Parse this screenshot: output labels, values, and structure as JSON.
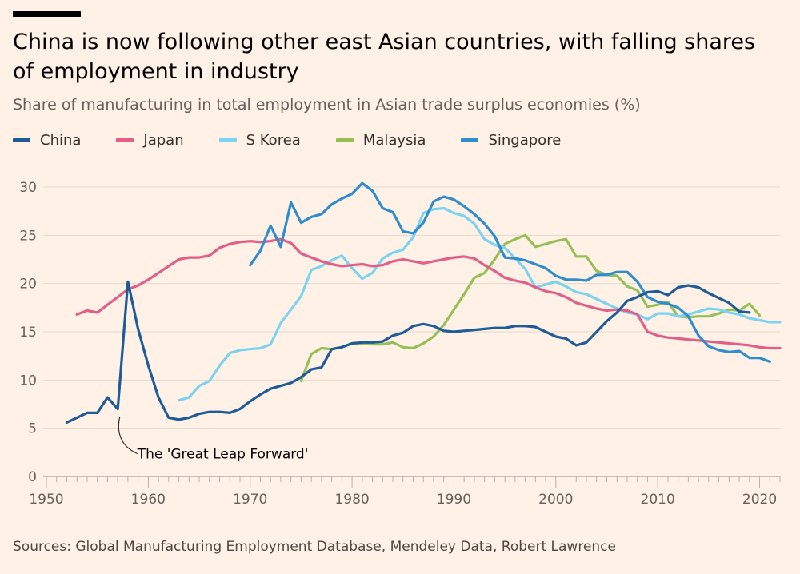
{
  "header": {
    "title": "China is now following other east Asian countries, with falling shares of employment in industry",
    "subtitle": "Share of manufacturing in total employment in Asian trade surplus economies (%)"
  },
  "legend": [
    {
      "name": "China",
      "color": "#1E5B99"
    },
    {
      "name": "Japan",
      "color": "#E35E87"
    },
    {
      "name": "S Korea",
      "color": "#7AD3F1"
    },
    {
      "name": "Malaysia",
      "color": "#96C056"
    },
    {
      "name": "Singapore",
      "color": "#2E8CCF"
    }
  ],
  "source": "Sources: Global Manufacturing Employment Database, Mendeley Data, Robert Lawrence",
  "chart_data": {
    "type": "line",
    "title": "Share of manufacturing in total employment in Asian trade surplus economies (%)",
    "xlabel": "",
    "ylabel": "",
    "xlim": [
      1950,
      2022
    ],
    "ylim": [
      0,
      30
    ],
    "x_ticks": [
      1950,
      1960,
      1970,
      1980,
      1990,
      2000,
      2010,
      2020
    ],
    "y_ticks": [
      0,
      5,
      10,
      15,
      20,
      25,
      30
    ],
    "grid": true,
    "annotation": {
      "text": "The 'Great Leap Forward'",
      "x": 1958,
      "y": 7
    },
    "series": [
      {
        "name": "China",
        "color": "#1E5B99",
        "x": [
          1952,
          1953,
          1954,
          1955,
          1956,
          1957,
          1958,
          1959,
          1960,
          1961,
          1962,
          1963,
          1964,
          1965,
          1966,
          1967,
          1968,
          1969,
          1970,
          1971,
          1972,
          1973,
          1974,
          1975,
          1976,
          1977,
          1978,
          1979,
          1980,
          1981,
          1982,
          1983,
          1984,
          1985,
          1986,
          1987,
          1988,
          1989,
          1990,
          1991,
          1992,
          1993,
          1994,
          1995,
          1996,
          1997,
          1998,
          1999,
          2000,
          2001,
          2002,
          2003,
          2004,
          2005,
          2006,
          2007,
          2008,
          2009,
          2010,
          2011,
          2012,
          2013,
          2014,
          2015,
          2016,
          2017,
          2018,
          2019
        ],
        "y": [
          5.6,
          6.1,
          6.6,
          6.6,
          8.2,
          7.0,
          20.2,
          15.3,
          11.5,
          8.2,
          6.1,
          5.9,
          6.1,
          6.5,
          6.7,
          6.7,
          6.6,
          7.0,
          7.8,
          8.5,
          9.1,
          9.4,
          9.7,
          10.3,
          11.1,
          11.3,
          13.2,
          13.4,
          13.8,
          13.9,
          13.9,
          14.0,
          14.6,
          14.9,
          15.6,
          15.8,
          15.6,
          15.1,
          15.0,
          15.1,
          15.2,
          15.3,
          15.4,
          15.4,
          15.6,
          15.6,
          15.5,
          15.0,
          14.5,
          14.3,
          13.6,
          13.9,
          15.0,
          16.1,
          17.0,
          18.2,
          18.6,
          19.1,
          19.2,
          18.8,
          19.6,
          19.8,
          19.6,
          19.0,
          18.5,
          18.0,
          17.1,
          17.0
        ]
      },
      {
        "name": "Japan",
        "color": "#E35E87",
        "x": [
          1953,
          1954,
          1955,
          1956,
          1957,
          1958,
          1959,
          1960,
          1961,
          1962,
          1963,
          1964,
          1965,
          1966,
          1967,
          1968,
          1969,
          1970,
          1971,
          1972,
          1973,
          1974,
          1975,
          1976,
          1977,
          1978,
          1979,
          1980,
          1981,
          1982,
          1983,
          1984,
          1985,
          1986,
          1987,
          1988,
          1989,
          1990,
          1991,
          1992,
          1993,
          1994,
          1995,
          1996,
          1997,
          1998,
          1999,
          2000,
          2001,
          2002,
          2003,
          2004,
          2005,
          2006,
          2007,
          2008,
          2009,
          2010,
          2011,
          2012,
          2013,
          2014,
          2015,
          2016,
          2017,
          2018,
          2019,
          2020,
          2021,
          2022
        ],
        "y": [
          16.8,
          17.2,
          17.0,
          17.8,
          18.6,
          19.4,
          19.8,
          20.4,
          21.1,
          21.8,
          22.5,
          22.7,
          22.7,
          22.9,
          23.7,
          24.1,
          24.3,
          24.4,
          24.3,
          24.4,
          24.6,
          24.2,
          23.1,
          22.7,
          22.3,
          22.0,
          21.8,
          21.9,
          22.0,
          21.8,
          21.9,
          22.3,
          22.5,
          22.3,
          22.1,
          22.3,
          22.5,
          22.7,
          22.8,
          22.6,
          21.9,
          21.3,
          20.6,
          20.3,
          20.1,
          19.6,
          19.2,
          19.0,
          18.6,
          18.0,
          17.7,
          17.4,
          17.2,
          17.3,
          17.2,
          16.8,
          15.0,
          14.6,
          14.4,
          14.3,
          14.2,
          14.1,
          14.0,
          13.9,
          13.8,
          13.7,
          13.6,
          13.4,
          13.3,
          13.3
        ]
      },
      {
        "name": "S Korea",
        "color": "#7AD3F1",
        "x": [
          1963,
          1964,
          1965,
          1966,
          1967,
          1968,
          1969,
          1970,
          1971,
          1972,
          1973,
          1974,
          1975,
          1976,
          1977,
          1978,
          1979,
          1980,
          1981,
          1982,
          1983,
          1984,
          1985,
          1986,
          1987,
          1988,
          1989,
          1990,
          1991,
          1992,
          1993,
          1994,
          1995,
          1996,
          1997,
          1998,
          1999,
          2000,
          2001,
          2002,
          2003,
          2004,
          2005,
          2006,
          2007,
          2008,
          2009,
          2010,
          2011,
          2012,
          2013,
          2014,
          2015,
          2016,
          2017,
          2018,
          2019,
          2020,
          2021,
          2022
        ],
        "y": [
          7.9,
          8.2,
          9.4,
          9.9,
          11.5,
          12.8,
          13.1,
          13.2,
          13.3,
          13.7,
          15.9,
          17.3,
          18.7,
          21.4,
          21.8,
          22.4,
          22.9,
          21.6,
          20.5,
          21.1,
          22.6,
          23.2,
          23.5,
          24.8,
          27.3,
          27.7,
          27.8,
          27.3,
          27.0,
          26.2,
          24.6,
          24.0,
          23.7,
          22.6,
          21.5,
          19.6,
          19.9,
          20.2,
          19.7,
          19.1,
          18.9,
          18.4,
          17.9,
          17.4,
          17.0,
          16.8,
          16.3,
          16.9,
          16.9,
          16.6,
          16.8,
          17.1,
          17.4,
          17.3,
          17.0,
          16.8,
          16.4,
          16.2,
          16.0,
          16.0
        ]
      },
      {
        "name": "Malaysia",
        "color": "#96C056",
        "x": [
          1975,
          1976,
          1977,
          1978,
          1979,
          1980,
          1981,
          1982,
          1983,
          1984,
          1985,
          1986,
          1987,
          1988,
          1989,
          1990,
          1991,
          1992,
          1993,
          1994,
          1995,
          1996,
          1997,
          1998,
          1999,
          2000,
          2001,
          2002,
          2003,
          2004,
          2005,
          2006,
          2007,
          2008,
          2009,
          2010,
          2011,
          2012,
          2013,
          2014,
          2015,
          2016,
          2017,
          2018,
          2019,
          2020
        ],
        "y": [
          9.9,
          12.7,
          13.3,
          13.2,
          13.4,
          13.8,
          13.8,
          13.7,
          13.7,
          13.9,
          13.4,
          13.3,
          13.8,
          14.5,
          15.7,
          17.3,
          18.9,
          20.6,
          21.1,
          22.5,
          24.1,
          24.6,
          25.0,
          23.8,
          24.1,
          24.4,
          24.6,
          22.8,
          22.8,
          21.3,
          20.9,
          20.8,
          19.7,
          19.3,
          17.6,
          17.8,
          18.1,
          16.6,
          16.5,
          16.6,
          16.6,
          16.9,
          17.3,
          17.2,
          17.9,
          16.7
        ]
      },
      {
        "name": "Singapore",
        "color": "#2E8CCF",
        "x": [
          1970,
          1971,
          1972,
          1973,
          1974,
          1975,
          1976,
          1977,
          1978,
          1979,
          1980,
          1981,
          1982,
          1983,
          1984,
          1985,
          1986,
          1987,
          1988,
          1989,
          1990,
          1991,
          1992,
          1993,
          1994,
          1995,
          1996,
          1997,
          1998,
          1999,
          2000,
          2001,
          2002,
          2003,
          2004,
          2005,
          2006,
          2007,
          2008,
          2009,
          2010,
          2011,
          2012,
          2013,
          2014,
          2015,
          2016,
          2017,
          2018,
          2019,
          2020,
          2021
        ],
        "y": [
          21.9,
          23.4,
          26.0,
          23.8,
          28.4,
          26.3,
          26.9,
          27.2,
          28.2,
          28.8,
          29.3,
          30.4,
          29.6,
          27.8,
          27.4,
          25.4,
          25.2,
          26.3,
          28.5,
          29.0,
          28.7,
          28.0,
          27.2,
          26.2,
          24.9,
          22.7,
          22.6,
          22.4,
          22.0,
          21.6,
          20.8,
          20.4,
          20.4,
          20.3,
          20.9,
          20.9,
          21.2,
          21.2,
          20.2,
          18.6,
          18.1,
          17.9,
          17.5,
          16.6,
          14.6,
          13.5,
          13.1,
          12.9,
          13.0,
          12.3,
          12.3,
          11.9
        ]
      }
    ]
  }
}
